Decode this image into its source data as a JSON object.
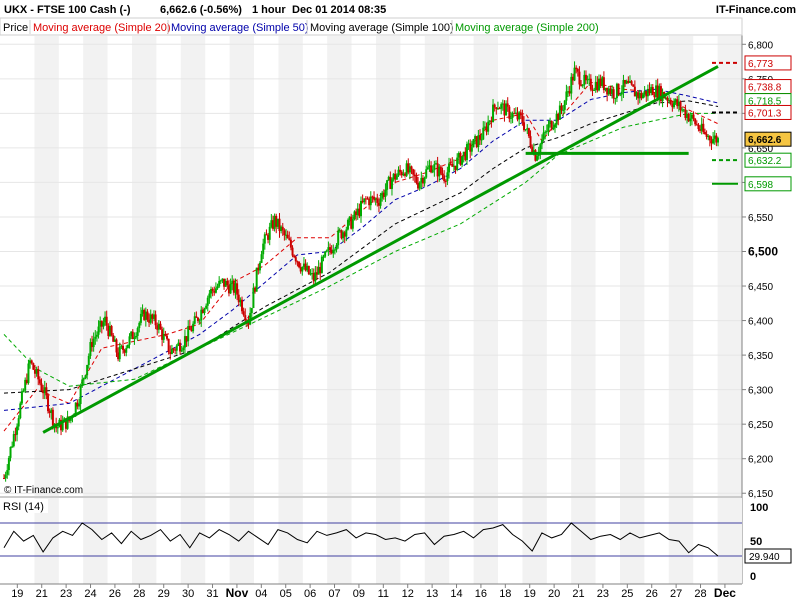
{
  "header": {
    "instrument": "UKX - FTSE 100 Cash (-)",
    "last_change": "6,662.6 (-0.56%)",
    "interval": "1 hour",
    "datetime": "Dec 01 2014 08:35",
    "brand": "IT-Finance.com"
  },
  "legend": {
    "price": "Price",
    "ma20": "Moving average (Simple 20)",
    "ma50": "Moving average (Simple 50)",
    "ma100": "Moving average (Simple 100)",
    "ma200": "Moving average (Simple 200)"
  },
  "watermark": "© IT-Finance.com",
  "colors": {
    "up": "#00aa00",
    "down": "#cc0000",
    "ma20": "#dd0000",
    "ma50": "#0000aa",
    "ma100": "#000000",
    "ma200": "#00aa00",
    "trendline": "#009900",
    "grid": "#e6e6e6",
    "band": "#f2f2f2",
    "current_label_bg": "#f5c542"
  },
  "chart_data": [
    {
      "type": "candlestick",
      "name": "price",
      "y_tick_labels": [
        "6,800",
        "6,750",
        "6,700",
        "6,650",
        "6,600",
        "6,550",
        "6,500",
        "6,450",
        "6,400",
        "6,350",
        "6,300",
        "6,250",
        "6,200",
        "6,150"
      ],
      "y_ticks": [
        6800,
        6750,
        6700,
        6650,
        6600,
        6550,
        6500,
        6450,
        6400,
        6350,
        6300,
        6250,
        6200,
        6150
      ],
      "ylim": [
        6146,
        6812
      ],
      "major_tick": "6,500",
      "x_labels": [
        "19",
        "21",
        "23",
        "24",
        "26",
        "28",
        "29",
        "30",
        "31",
        "Nov",
        "04",
        "05",
        "06",
        "07",
        "09",
        "11",
        "12",
        "13",
        "14",
        "16",
        "18",
        "19",
        "20",
        "21",
        "23",
        "25",
        "26",
        "27",
        "28",
        "Dec"
      ],
      "shaded_day_bands": 15,
      "close_path": [
        [
          0,
          6172
        ],
        [
          4,
          6255
        ],
        [
          8,
          6340
        ],
        [
          12,
          6300
        ],
        [
          16,
          6245
        ],
        [
          20,
          6255
        ],
        [
          23,
          6290
        ],
        [
          27,
          6370
        ],
        [
          31,
          6400
        ],
        [
          35,
          6350
        ],
        [
          39,
          6375
        ],
        [
          43,
          6410
        ],
        [
          47,
          6395
        ],
        [
          51,
          6355
        ],
        [
          55,
          6370
        ],
        [
          59,
          6400
        ],
        [
          63,
          6440
        ],
        [
          67,
          6455
        ],
        [
          71,
          6445
        ],
        [
          75,
          6400
        ],
        [
          79,
          6505
        ],
        [
          83,
          6545
        ],
        [
          87,
          6515
        ],
        [
          91,
          6480
        ],
        [
          95,
          6460
        ],
        [
          99,
          6495
        ],
        [
          103,
          6525
        ],
        [
          107,
          6545
        ],
        [
          111,
          6575
        ],
        [
          115,
          6575
        ],
        [
          119,
          6605
        ],
        [
          123,
          6620
        ],
        [
          127,
          6600
        ],
        [
          131,
          6625
        ],
        [
          135,
          6610
        ],
        [
          139,
          6630
        ],
        [
          143,
          6650
        ],
        [
          147,
          6670
        ],
        [
          151,
          6715
        ],
        [
          155,
          6700
        ],
        [
          159,
          6690
        ],
        [
          163,
          6640
        ],
        [
          167,
          6680
        ],
        [
          171,
          6705
        ],
        [
          175,
          6760
        ],
        [
          179,
          6740
        ],
        [
          183,
          6745
        ],
        [
          187,
          6730
        ],
        [
          191,
          6740
        ],
        [
          195,
          6725
        ],
        [
          199,
          6735
        ],
        [
          203,
          6725
        ],
        [
          207,
          6710
        ],
        [
          211,
          6692
        ],
        [
          215,
          6668
        ],
        [
          219,
          6662
        ]
      ],
      "moving_averages": [
        {
          "name": "Moving average (Simple 20)",
          "points": [
            [
              0,
              6240
            ],
            [
              10,
              6300
            ],
            [
              20,
              6280
            ],
            [
              30,
              6360
            ],
            [
              40,
              6370
            ],
            [
              50,
              6380
            ],
            [
              60,
              6395
            ],
            [
              70,
              6455
            ],
            [
              80,
              6480
            ],
            [
              90,
              6520
            ],
            [
              100,
              6520
            ],
            [
              110,
              6560
            ],
            [
              120,
              6600
            ],
            [
              130,
              6615
            ],
            [
              140,
              6635
            ],
            [
              150,
              6690
            ],
            [
              160,
              6700
            ],
            [
              165,
              6660
            ],
            [
              170,
              6690
            ],
            [
              180,
              6745
            ],
            [
              190,
              6735
            ],
            [
              200,
              6730
            ],
            [
              210,
              6705
            ],
            [
              219,
              6685
            ]
          ]
        },
        {
          "name": "Moving average (Simple 50)",
          "points": [
            [
              0,
              6270
            ],
            [
              20,
              6280
            ],
            [
              40,
              6330
            ],
            [
              60,
              6380
            ],
            [
              70,
              6415
            ],
            [
              80,
              6455
            ],
            [
              90,
              6495
            ],
            [
              100,
              6500
            ],
            [
              110,
              6535
            ],
            [
              120,
              6575
            ],
            [
              130,
              6595
            ],
            [
              140,
              6620
            ],
            [
              150,
              6660
            ],
            [
              160,
              6690
            ],
            [
              170,
              6690
            ],
            [
              180,
              6720
            ],
            [
              190,
              6730
            ],
            [
              200,
              6735
            ],
            [
              210,
              6725
            ],
            [
              219,
              6715
            ]
          ]
        },
        {
          "name": "Moving average (Simple 100)",
          "points": [
            [
              0,
              6295
            ],
            [
              20,
              6300
            ],
            [
              40,
              6330
            ],
            [
              60,
              6360
            ],
            [
              80,
              6420
            ],
            [
              100,
              6470
            ],
            [
              120,
              6540
            ],
            [
              140,
              6585
            ],
            [
              150,
              6620
            ],
            [
              160,
              6650
            ],
            [
              170,
              6665
            ],
            [
              180,
              6685
            ],
            [
              190,
              6700
            ],
            [
              200,
              6715
            ],
            [
              210,
              6718
            ],
            [
              219,
              6710
            ]
          ]
        },
        {
          "name": "Moving average (Simple 200)",
          "points": [
            [
              0,
              6380
            ],
            [
              10,
              6330
            ],
            [
              20,
              6305
            ],
            [
              40,
              6315
            ],
            [
              60,
              6360
            ],
            [
              80,
              6405
            ],
            [
              100,
              6450
            ],
            [
              120,
              6500
            ],
            [
              140,
              6540
            ],
            [
              160,
              6600
            ],
            [
              170,
              6640
            ],
            [
              180,
              6660
            ],
            [
              190,
              6680
            ],
            [
              200,
              6690
            ],
            [
              210,
              6700
            ],
            [
              219,
              6700
            ]
          ]
        }
      ],
      "trendlines": [
        {
          "from": [
            12,
            6238
          ],
          "to": [
            219,
            6768
          ]
        },
        {
          "from": [
            160,
            6642
          ],
          "to": [
            210,
            6642
          ]
        }
      ],
      "level_labels": [
        {
          "value": 6773,
          "text": "6,773",
          "color": "#cc0000",
          "style": "dashed"
        },
        {
          "value": 6738.8,
          "text": "6,738.8",
          "color": "#cc0000",
          "style": "none"
        },
        {
          "value": 6718.5,
          "text": "6,718.5",
          "color": "#009900",
          "style": "none"
        },
        {
          "value": 6701.3,
          "text": "6,701.3",
          "color": "#cc0000",
          "style": "dashed-black"
        },
        {
          "value": 6662.6,
          "text": "6,662.6",
          "color": "#000000",
          "style": "current"
        },
        {
          "value": 6632.2,
          "text": "6,632.2",
          "color": "#009900",
          "style": "dashed"
        },
        {
          "value": 6598,
          "text": "6,598",
          "color": "#009900",
          "style": "solid"
        }
      ]
    },
    {
      "type": "line",
      "name": "RSI (14)",
      "y_tick_labels": [
        "100",
        "50",
        "0"
      ],
      "y_ticks": [
        100,
        50,
        0
      ],
      "ylim": [
        0,
        100
      ],
      "levels": [
        70,
        30
      ],
      "current_text": "29.940",
      "path": [
        [
          0,
          40
        ],
        [
          3,
          60
        ],
        [
          6,
          48
        ],
        [
          9,
          55
        ],
        [
          12,
          35
        ],
        [
          15,
          52
        ],
        [
          18,
          60
        ],
        [
          21,
          55
        ],
        [
          24,
          70
        ],
        [
          27,
          62
        ],
        [
          30,
          50
        ],
        [
          33,
          58
        ],
        [
          36,
          45
        ],
        [
          39,
          60
        ],
        [
          42,
          50
        ],
        [
          45,
          55
        ],
        [
          48,
          62
        ],
        [
          51,
          48
        ],
        [
          54,
          56
        ],
        [
          57,
          40
        ],
        [
          60,
          58
        ],
        [
          63,
          52
        ],
        [
          66,
          62
        ],
        [
          69,
          56
        ],
        [
          72,
          48
        ],
        [
          75,
          60
        ],
        [
          78,
          52
        ],
        [
          81,
          44
        ],
        [
          84,
          62
        ],
        [
          87,
          58
        ],
        [
          90,
          50
        ],
        [
          93,
          46
        ],
        [
          96,
          60
        ],
        [
          99,
          55
        ],
        [
          102,
          58
        ],
        [
          105,
          62
        ],
        [
          108,
          52
        ],
        [
          111,
          58
        ],
        [
          114,
          56
        ],
        [
          117,
          50
        ],
        [
          120,
          52
        ],
        [
          123,
          48
        ],
        [
          126,
          56
        ],
        [
          129,
          58
        ],
        [
          132,
          44
        ],
        [
          135,
          54
        ],
        [
          138,
          56
        ],
        [
          141,
          60
        ],
        [
          144,
          52
        ],
        [
          147,
          62
        ],
        [
          150,
          64
        ],
        [
          153,
          68
        ],
        [
          156,
          56
        ],
        [
          159,
          48
        ],
        [
          162,
          36
        ],
        [
          165,
          58
        ],
        [
          168,
          52
        ],
        [
          171,
          56
        ],
        [
          174,
          70
        ],
        [
          177,
          60
        ],
        [
          180,
          50
        ],
        [
          183,
          54
        ],
        [
          186,
          56
        ],
        [
          189,
          50
        ],
        [
          192,
          58
        ],
        [
          195,
          52
        ],
        [
          198,
          55
        ],
        [
          201,
          58
        ],
        [
          204,
          50
        ],
        [
          207,
          48
        ],
        [
          210,
          34
        ],
        [
          213,
          44
        ],
        [
          216,
          40
        ],
        [
          219,
          30
        ]
      ]
    }
  ]
}
